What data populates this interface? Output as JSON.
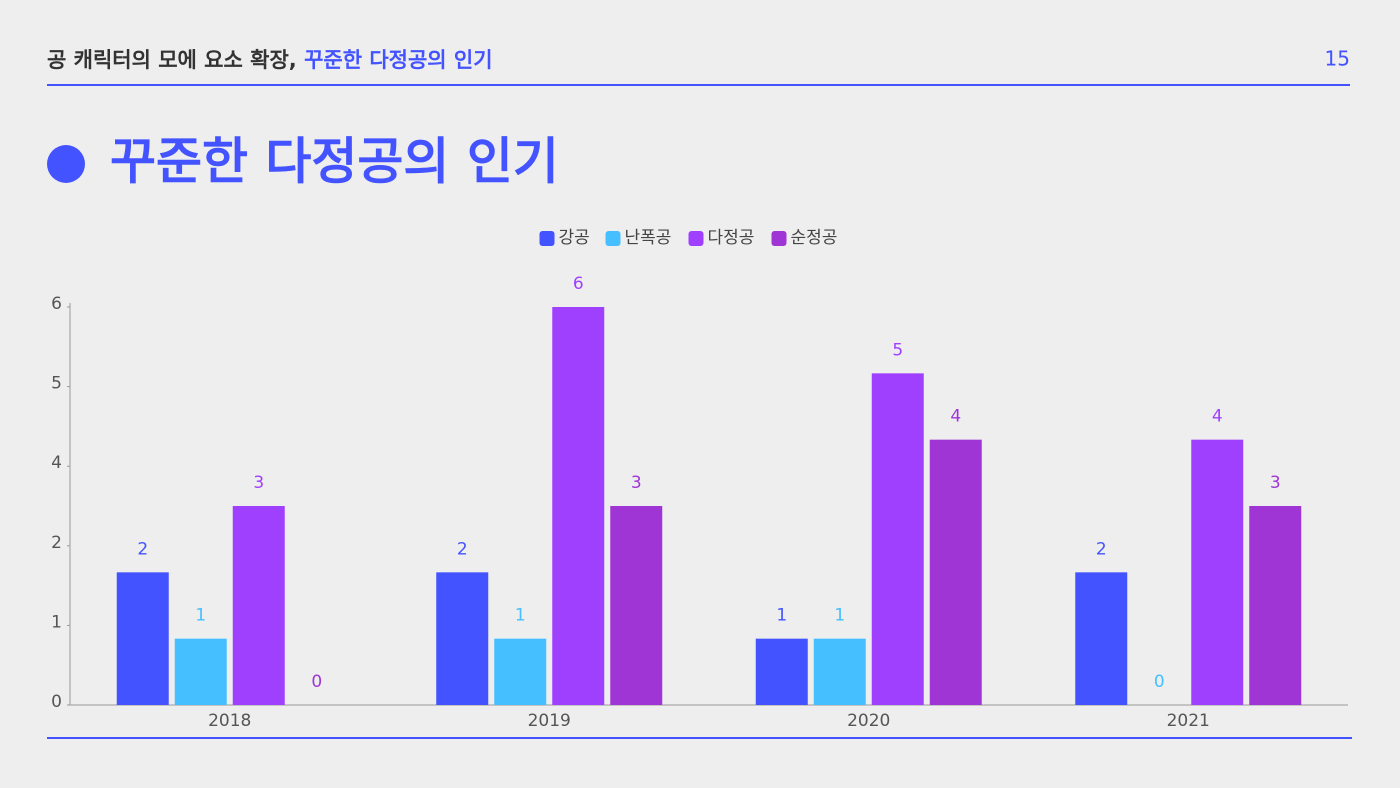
{
  "header": {
    "title_main": "공 캐릭터의 모에 요소 확장,",
    "title_accent": "꾸준한 다정공의 인기",
    "page": "15"
  },
  "heading": "꾸준한 다정공의 인기",
  "chart_data": {
    "type": "bar",
    "categories": [
      "2018",
      "2019",
      "2020",
      "2021"
    ],
    "series": [
      {
        "name": "강공",
        "color": "#4353ff",
        "values": [
          2,
          2,
          1,
          2
        ]
      },
      {
        "name": "난폭공",
        "color": "#45bfff",
        "values": [
          1,
          1,
          1,
          0
        ]
      },
      {
        "name": "다정공",
        "color": "#a040ff",
        "values": [
          3,
          6,
          5,
          4
        ]
      },
      {
        "name": "순정공",
        "color": "#a035d5",
        "values": [
          0,
          3,
          4,
          3
        ]
      }
    ],
    "ylim": [
      0,
      6
    ],
    "yticks": [
      0,
      {
        "value": 1.2,
        "label": "1"
      },
      {
        "value": 2.4,
        "label": "2"
      },
      {
        "value": 3.6,
        "label": "4"
      },
      {
        "value": 4.8,
        "label": "5"
      },
      6
    ],
    "legend": "top"
  }
}
